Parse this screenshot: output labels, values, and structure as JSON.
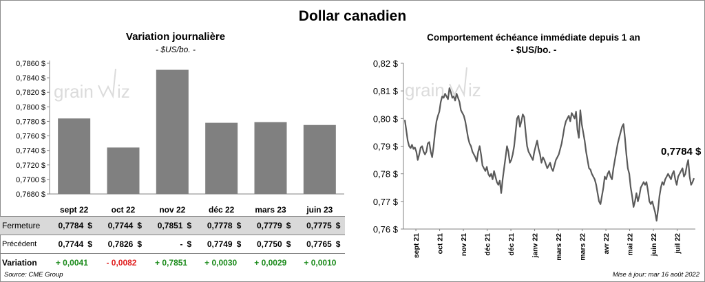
{
  "title": "Dollar canadien",
  "chart_data": [
    {
      "type": "bar",
      "title": "Variation  journalière",
      "subtitle": "- $US/bo. -",
      "categories": [
        "sept 22",
        "oct 22",
        "nov 22",
        "déc 22",
        "mars 23",
        "juin 23"
      ],
      "values": [
        0.7784,
        0.7744,
        0.7851,
        0.7778,
        0.7779,
        0.7775
      ],
      "ylim": [
        0.768,
        0.786
      ],
      "yticks": [
        "0,7680 $",
        "0,7700 $",
        "0,7720 $",
        "0,7740 $",
        "0,7760 $",
        "0,7780 $",
        "0,7800 $",
        "0,7820 $",
        "0,7840 $",
        "0,7860 $"
      ],
      "bar_color": "#808080",
      "grid": false
    },
    {
      "type": "line",
      "title": "Comportement échéance immédiate depuis 1 an",
      "subtitle": "- $US/bo. -",
      "ylim": [
        0.76,
        0.82
      ],
      "yticks": [
        "0,76 $",
        "0,77 $",
        "0,78 $",
        "0,79 $",
        "0,80 $",
        "0,81 $",
        "0,82 $"
      ],
      "x_labels": [
        "sept 21",
        "oct 21",
        "nov 21",
        "déc 21",
        "déc 21",
        "janv 22",
        "mars 22",
        "mars 22",
        "avr 22",
        "mai 22",
        "juin 22",
        "juil 22"
      ],
      "line_color": "#5a5a5a",
      "last_label": "0,7784 $",
      "values": [
        0.7995,
        0.7958,
        0.792,
        0.79,
        0.7893,
        0.7905,
        0.789,
        0.7895,
        0.788,
        0.785,
        0.787,
        0.7895,
        0.79,
        0.788,
        0.787,
        0.788,
        0.791,
        0.7915,
        0.788,
        0.786,
        0.79,
        0.795,
        0.799,
        0.801,
        0.8025,
        0.806,
        0.808,
        0.8075,
        0.809,
        0.808,
        0.807,
        0.811,
        0.8095,
        0.8075,
        0.808,
        0.8065,
        0.809,
        0.8075,
        0.806,
        0.803,
        0.802,
        0.801,
        0.799,
        0.796,
        0.793,
        0.791,
        0.79,
        0.788,
        0.787,
        0.786,
        0.7845,
        0.788,
        0.79,
        0.787,
        0.783,
        0.782,
        0.781,
        0.7825,
        0.78,
        0.779,
        0.78,
        0.778,
        0.781,
        0.779,
        0.777,
        0.776,
        0.7775,
        0.773,
        0.778,
        0.782,
        0.786,
        0.79,
        0.788,
        0.784,
        0.785,
        0.787,
        0.79,
        0.795,
        0.8,
        0.801,
        0.797,
        0.799,
        0.8015,
        0.8005,
        0.795,
        0.79,
        0.788,
        0.787,
        0.786,
        0.785,
        0.788,
        0.79,
        0.792,
        0.789,
        0.787,
        0.784,
        0.786,
        0.785,
        0.7835,
        0.782,
        0.783,
        0.784,
        0.782,
        0.781,
        0.783,
        0.785,
        0.786,
        0.787,
        0.789,
        0.791,
        0.794,
        0.797,
        0.799,
        0.8,
        0.801,
        0.799,
        0.802,
        0.801,
        0.8,
        0.8025,
        0.796,
        0.793,
        0.803,
        0.798,
        0.795,
        0.792,
        0.788,
        0.785,
        0.782,
        0.7815,
        0.78,
        0.779,
        0.778,
        0.776,
        0.773,
        0.77,
        0.769,
        0.772,
        0.775,
        0.779,
        0.778,
        0.78,
        0.781,
        0.779,
        0.778,
        0.782,
        0.785,
        0.788,
        0.791,
        0.793,
        0.795,
        0.797,
        0.798,
        0.793,
        0.787,
        0.782,
        0.78,
        0.775,
        0.772,
        0.768,
        0.77,
        0.773,
        0.77,
        0.772,
        0.775,
        0.776,
        0.777,
        0.776,
        0.777,
        0.774,
        0.77,
        0.769,
        0.77,
        0.768,
        0.766,
        0.763,
        0.767,
        0.772,
        0.775,
        0.777,
        0.776,
        0.778,
        0.779,
        0.78,
        0.779,
        0.778,
        0.78,
        0.781,
        0.778,
        0.776,
        0.779,
        0.78,
        0.781,
        0.782,
        0.779,
        0.78,
        0.783,
        0.785,
        0.779,
        0.776,
        0.777,
        0.7784
      ]
    }
  ],
  "table": {
    "rows": [
      {
        "label": "Fermeture",
        "cells": [
          {
            "value": "0,7784",
            "dollar": "$"
          },
          {
            "value": "0,7744",
            "dollar": "$"
          },
          {
            "value": "0,7851",
            "dollar": "$"
          },
          {
            "value": "0,7778",
            "dollar": "$"
          },
          {
            "value": "0,7779",
            "dollar": "$"
          },
          {
            "value": "0,7775",
            "dollar": "$"
          }
        ]
      },
      {
        "label": "Précédent",
        "cells": [
          {
            "value": "0,7744",
            "dollar": "$"
          },
          {
            "value": "0,7826",
            "dollar": "$"
          },
          {
            "value": "-",
            "dollar": "$"
          },
          {
            "value": "0,7749",
            "dollar": "$"
          },
          {
            "value": "0,7750",
            "dollar": "$"
          },
          {
            "value": "0,7765",
            "dollar": "$"
          }
        ]
      }
    ],
    "variation": {
      "label": "Variation",
      "values": [
        "+ 0,0041",
        "- 0,0082",
        "+ 0,7851",
        "+ 0,0030",
        "+ 0,0029",
        "+ 0,0010"
      ],
      "colors": [
        "#1a8a1a",
        "#e02020",
        "#1a8a1a",
        "#1a8a1a",
        "#1a8a1a",
        "#1a8a1a"
      ]
    }
  },
  "source": "Source: CME Group",
  "updated": "Mise à jour: mar 16 août 2022"
}
